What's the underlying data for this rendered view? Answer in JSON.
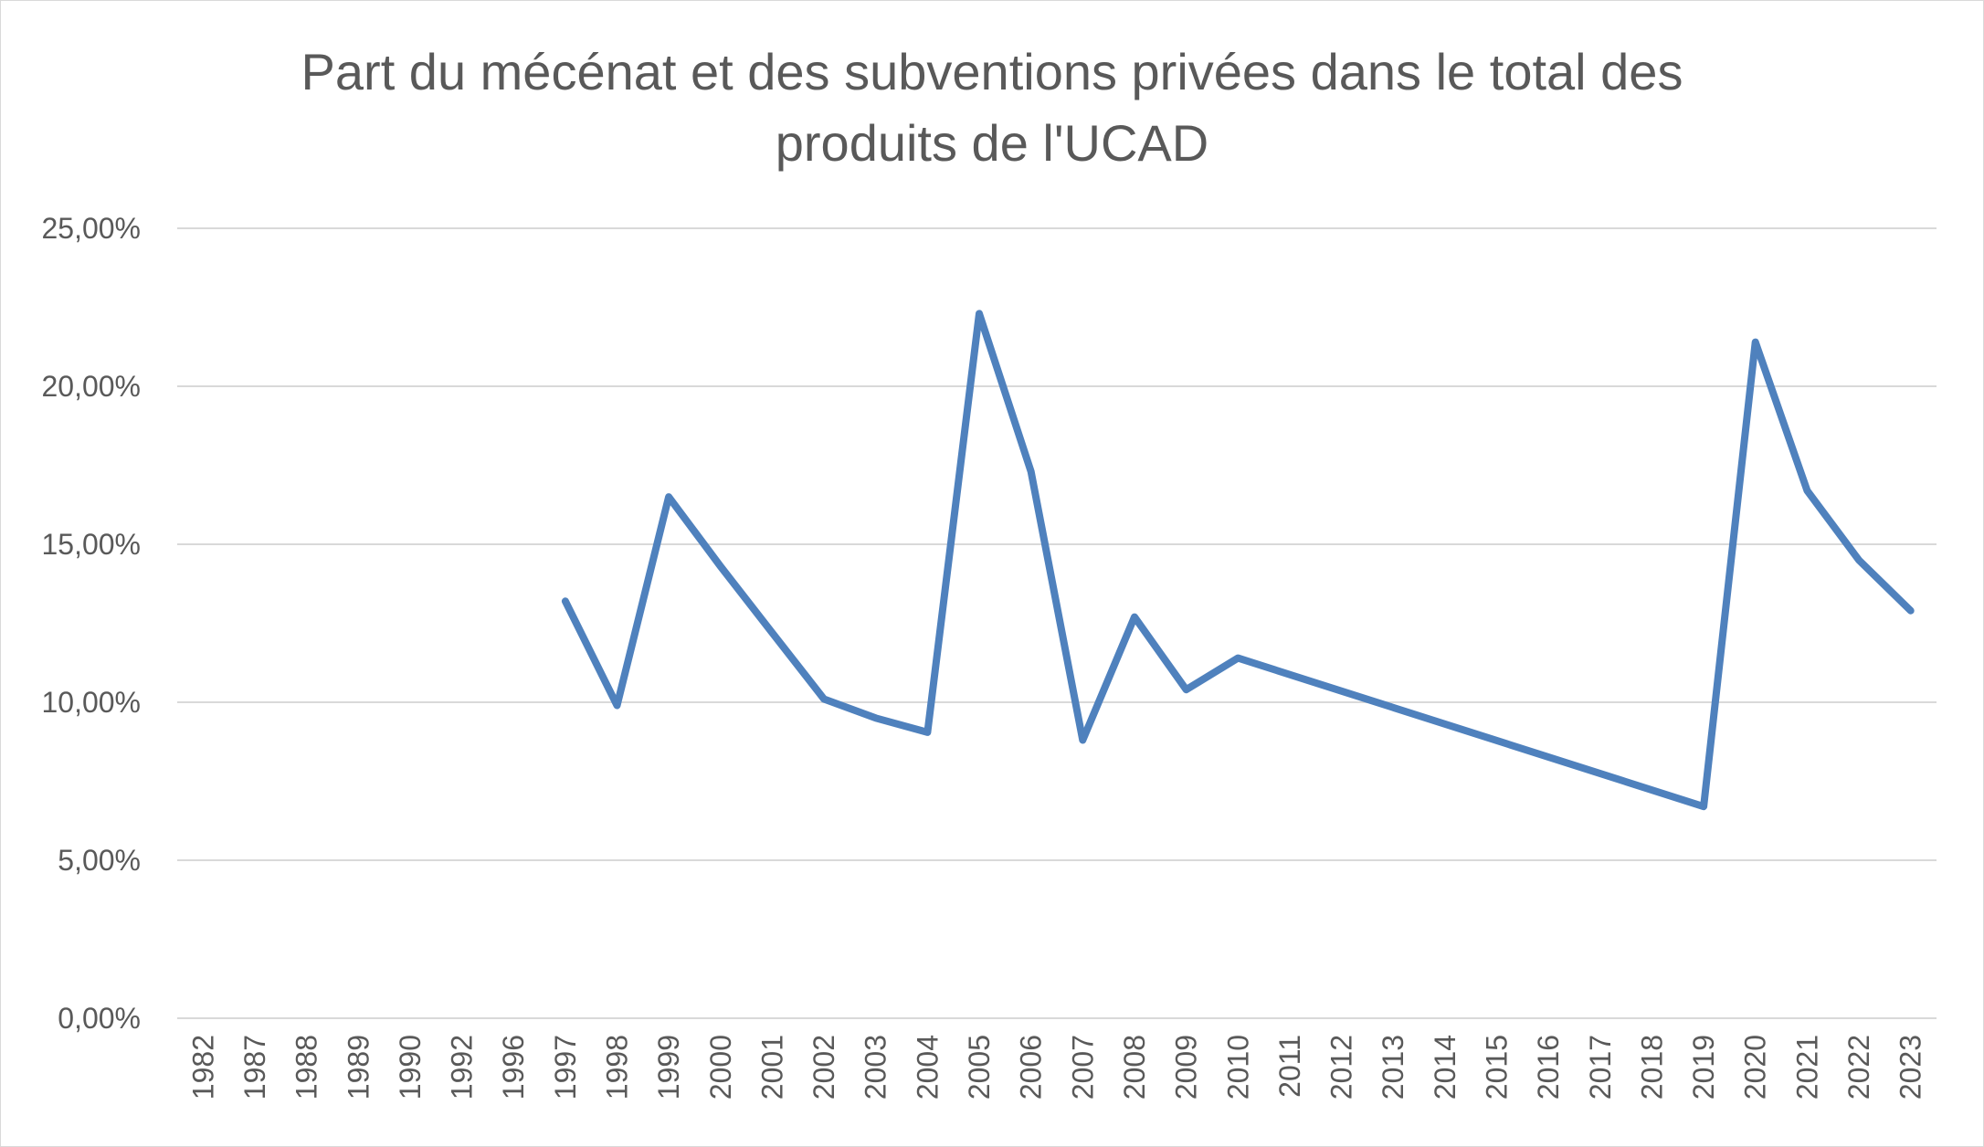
{
  "chart_data": {
    "type": "line",
    "title": "Part du mécénat et des subventions privées dans le total des produits de l'UCAD",
    "categories": [
      "1982",
      "1987",
      "1988",
      "1989",
      "1990",
      "1992",
      "1996",
      "1997",
      "1998",
      "1999",
      "2000",
      "2001",
      "2002",
      "2003",
      "2004",
      "2005",
      "2006",
      "2007",
      "2008",
      "2009",
      "2010",
      "2011",
      "2012",
      "2013",
      "2014",
      "2015",
      "2016",
      "2017",
      "2018",
      "2019",
      "2020",
      "2021",
      "2022",
      "2023"
    ],
    "series": [
      {
        "values": [
          null,
          null,
          null,
          null,
          null,
          null,
          null,
          13.2,
          9.9,
          16.5,
          14.3,
          12.2,
          10.1,
          9.5,
          9.05,
          22.3,
          17.3,
          8.8,
          12.7,
          10.4,
          11.4,
          null,
          null,
          null,
          null,
          null,
          null,
          null,
          null,
          6.7,
          21.4,
          16.7,
          14.5,
          12.9
        ],
        "color": "#4f81bd"
      }
    ],
    "ylim": [
      0,
      25
    ],
    "yticks": [
      0,
      5,
      10,
      15,
      20,
      25
    ],
    "ytick_labels": [
      "0,00%",
      "5,00%",
      "10,00%",
      "15,00%",
      "20,00%",
      "25,00%"
    ],
    "xlabel": "",
    "ylabel": "",
    "grid": true,
    "legend": "none"
  }
}
